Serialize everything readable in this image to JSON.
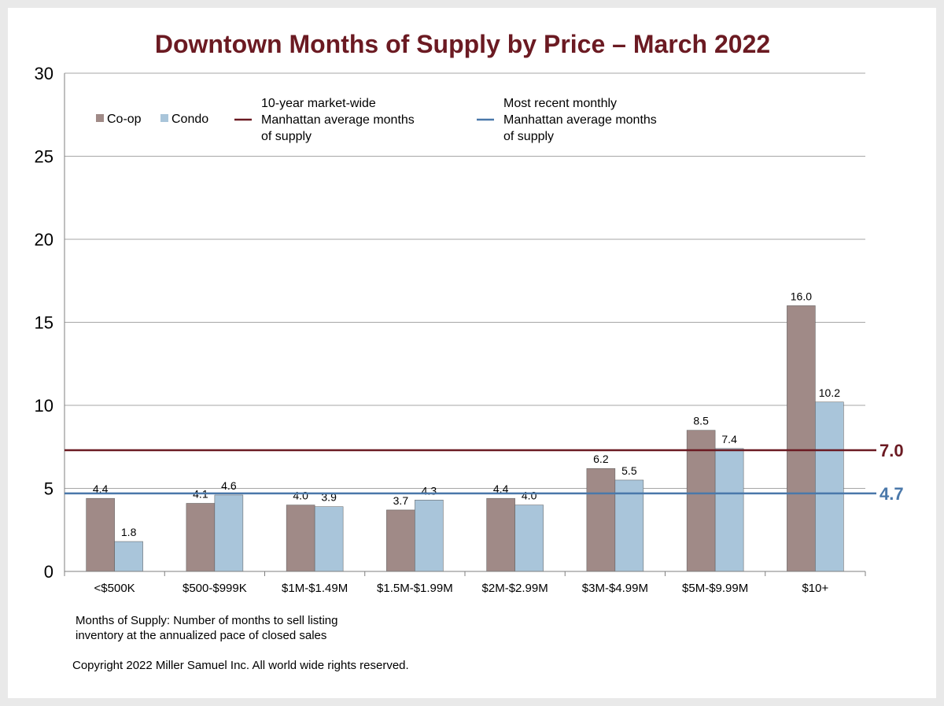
{
  "chart_data": {
    "type": "bar",
    "title": "Downtown Months of Supply by Price – March 2022",
    "categories": [
      "<$500K",
      "$500-$999K",
      "$1M-$1.49M",
      "$1.5M-$1.99M",
      "$2M-$2.99M",
      "$3M-$4.99M",
      "$5M-$9.99M",
      "$10+"
    ],
    "series": [
      {
        "name": "Co-op",
        "color": "#a08a87",
        "values": [
          4.4,
          4.1,
          4.0,
          3.7,
          4.4,
          6.2,
          8.5,
          16.0
        ]
      },
      {
        "name": "Condo",
        "color": "#a9c5da",
        "values": [
          1.8,
          4.6,
          3.9,
          4.3,
          4.0,
          5.5,
          7.4,
          10.2
        ]
      }
    ],
    "ylim": [
      0,
      30
    ],
    "yticks": [
      0,
      5,
      10,
      15,
      20,
      25,
      30
    ],
    "grid": true,
    "legend_position": "top",
    "reference_lines": [
      {
        "legend_lines": [
          "10-year market-wide",
          "Manhattan average months",
          "of supply"
        ],
        "value": 7.0,
        "display": "7.0",
        "color": "#6b1a22",
        "plot_value": 7.3
      },
      {
        "legend_lines": [
          "Most recent monthly",
          "Manhattan average months",
          "of supply"
        ],
        "value": 4.7,
        "display": "4.7",
        "color": "#4a78aa",
        "plot_value": 4.7
      }
    ],
    "footnote": [
      "Months of Supply: Number of months to sell listing",
      "inventory at the annualized pace of closed sales"
    ],
    "copyright": "Copyright 2022 Miller Samuel Inc.  All world wide rights reserved."
  }
}
